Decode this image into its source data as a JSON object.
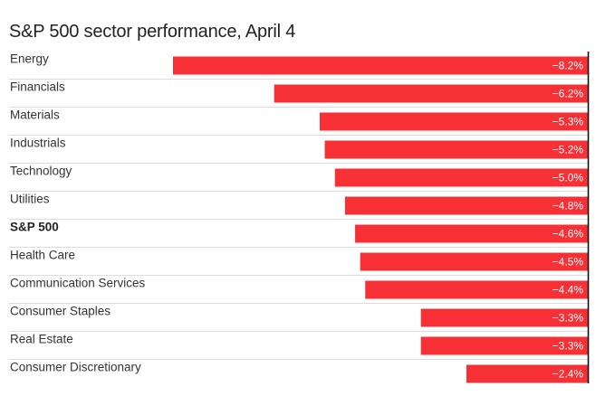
{
  "chart_data": {
    "type": "bar",
    "orientation": "horizontal",
    "title": "S&P 500 sector performance, April 4",
    "categories": [
      "Energy",
      "Financials",
      "Materials",
      "Industrials",
      "Technology",
      "Utilities",
      "S&P 500",
      "Health Care",
      "Communication Services",
      "Consumer Staples",
      "Real Estate",
      "Consumer Discretionary"
    ],
    "values": [
      -8.2,
      -6.2,
      -5.3,
      -5.2,
      -5.0,
      -4.8,
      -4.6,
      -4.5,
      -4.4,
      -3.3,
      -3.3,
      -2.4
    ],
    "value_labels": [
      "−8.2%",
      "−6.2%",
      "−5.3%",
      "−5.2%",
      "−5.0%",
      "−4.8%",
      "−4.6%",
      "−4.5%",
      "−4.4%",
      "−3.3%",
      "−3.3%",
      "−2.4%"
    ],
    "highlight_category": "S&P 500",
    "bar_color": "#f73036",
    "axis_color": "#111111",
    "gridline_color": "#dddddd",
    "xlim": [
      -8.2,
      0
    ]
  }
}
